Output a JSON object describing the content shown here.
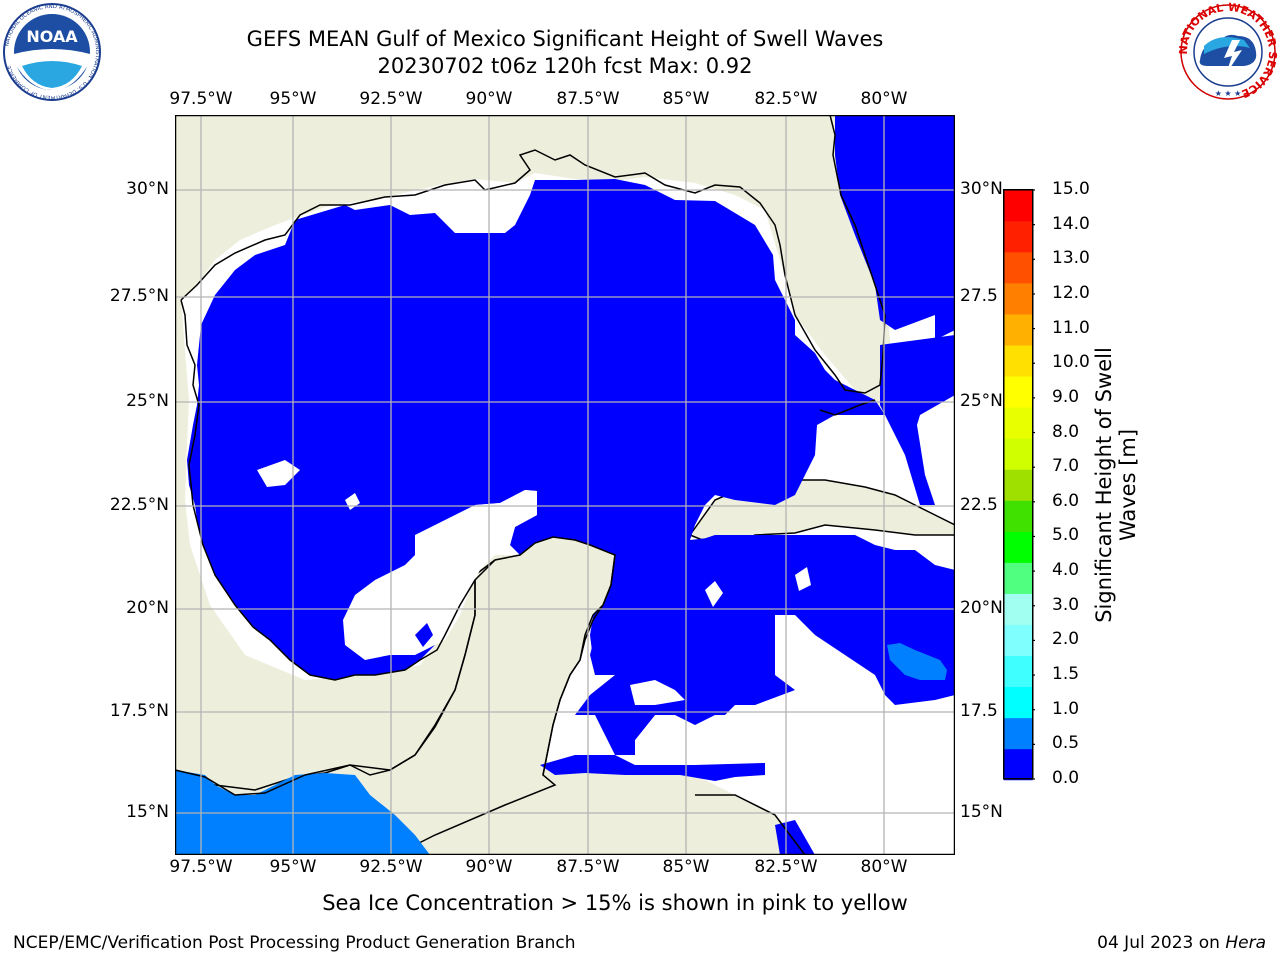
{
  "header": {
    "title_line1": "GEFS MEAN Gulf of Mexico Significant Height of Swell Waves",
    "title_line2": "20230702 t06z 120h fcst   Max: 0.92"
  },
  "logos": {
    "left": {
      "name": "NOAA",
      "ring_text": "NATIONAL OCEANIC AND ATMOSPHERIC ADMINISTRATION · U.S. DEPARTMENT OF COMMERCE"
    },
    "right": {
      "ring_text": "NATIONAL WEATHER SERVICE"
    }
  },
  "axes": {
    "lon_labels": [
      "97.5°W",
      "95°W",
      "92.5°W",
      "90°W",
      "87.5°W",
      "85°W",
      "82.5°W",
      "80°W"
    ],
    "lat_labels_left": [
      "30°N",
      "27.5°N",
      "25°N",
      "22.5°N",
      "20°N",
      "17.5°N",
      "15°N"
    ],
    "lat_labels_right": [
      "30°N",
      "27.5",
      "25°N",
      "22.5",
      "20°N",
      "17.5",
      "15°N"
    ]
  },
  "colorbar": {
    "title_line1": "Significant Height of Swell",
    "title_line2": "Waves [m]",
    "ticks": [
      "15.0",
      "14.0",
      "13.0",
      "12.0",
      "11.0",
      "10.0",
      "9.0",
      "8.0",
      "7.0",
      "6.0",
      "5.0",
      "4.0",
      "3.0",
      "2.0",
      "1.5",
      "1.0",
      "0.5",
      "0.0"
    ],
    "colors": [
      "#0000ff",
      "#0080ff",
      "#00ffff",
      "#40ffff",
      "#80ffff",
      "#a0fff0",
      "#50ff80",
      "#00ff00",
      "#40e000",
      "#a0e000",
      "#d0ff00",
      "#e8ff00",
      "#ffff00",
      "#ffe000",
      "#ffb000",
      "#ff8000",
      "#ff5000",
      "#ff2000",
      "#ff0000"
    ]
  },
  "map_colors": {
    "land": "#eeeedc",
    "sea_low": "#0000ff",
    "sea_mid": "#0080ff",
    "grid": "#b4b4b4"
  },
  "footnote": "Sea Ice Concentration > 15% is shown in pink to yellow",
  "credit": "NCEP/EMC/Verification Post Processing Product Generation Branch",
  "date_text": "04 Jul 2023 on",
  "host": "Hera"
}
